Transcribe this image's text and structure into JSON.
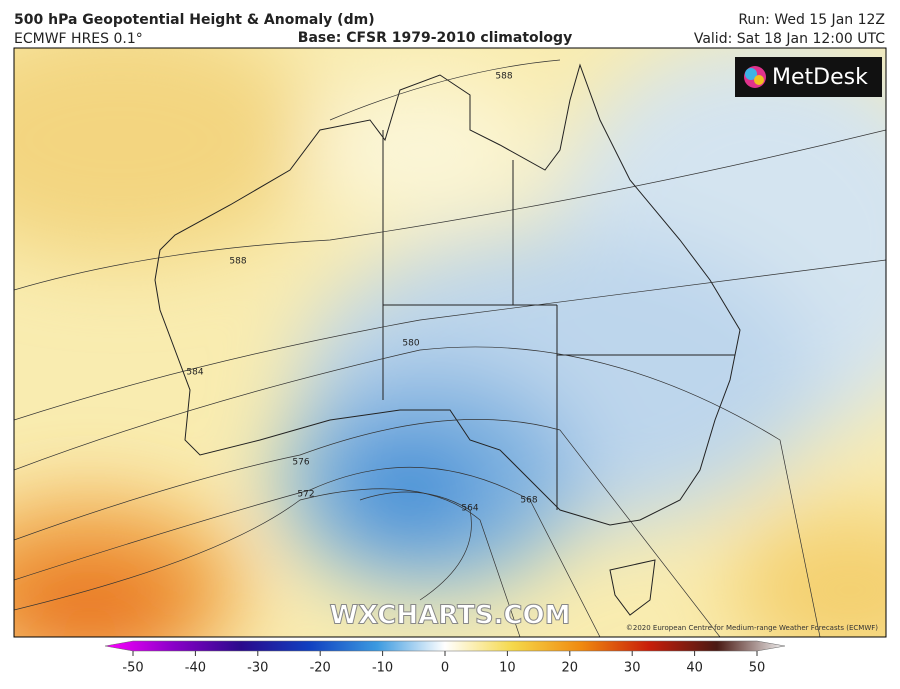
{
  "header": {
    "title": "500 hPa Geopotential Height & Anomaly (dm)",
    "model": "ECMWF HRES 0.1°",
    "base": "Base: CFSR 1979-2010 climatology",
    "run": "Run: Wed 15 Jan 12Z",
    "valid": "Valid: Sat 18 Jan 12:00 UTC"
  },
  "logo": "MetDesk",
  "map": {
    "contour_labels": [
      588,
      588,
      584,
      580,
      576,
      572,
      568,
      564
    ],
    "watermark": "WXCHARTS.COM",
    "credit": "©2020 European Centre for Medium-range Weather Forecasts (ECMWF)"
  },
  "colorbar": {
    "ticks": [
      -50,
      -40,
      -30,
      -20,
      -10,
      0,
      10,
      20,
      30,
      40,
      50
    ]
  }
}
